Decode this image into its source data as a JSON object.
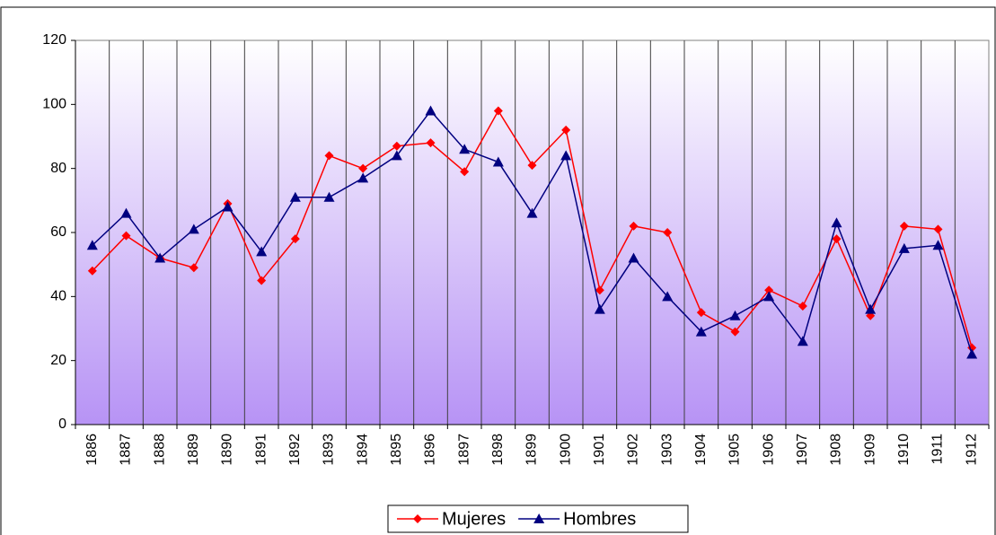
{
  "chart_data": {
    "type": "line",
    "categories": [
      "1886",
      "1887",
      "1888",
      "1889",
      "1890",
      "1891",
      "1892",
      "1893",
      "1894",
      "1895",
      "1896",
      "1897",
      "1898",
      "1899",
      "1900",
      "1901",
      "1902",
      "1903",
      "1904",
      "1905",
      "1906",
      "1907",
      "1908",
      "1909",
      "1910",
      "1911",
      "1912"
    ],
    "series": [
      {
        "name": "Mujeres",
        "color": "#ff0000",
        "marker": "diamond",
        "values": [
          48,
          59,
          52,
          49,
          69,
          45,
          58,
          84,
          80,
          87,
          88,
          79,
          98,
          81,
          92,
          42,
          62,
          60,
          35,
          29,
          42,
          37,
          58,
          34,
          62,
          61,
          24
        ]
      },
      {
        "name": "Hombres",
        "color": "#000080",
        "marker": "triangle",
        "values": [
          56,
          66,
          52,
          61,
          68,
          54,
          71,
          71,
          77,
          84,
          98,
          86,
          82,
          66,
          84,
          36,
          52,
          40,
          29,
          34,
          40,
          26,
          63,
          36,
          55,
          56,
          22
        ]
      }
    ],
    "ylim": [
      0,
      120
    ],
    "yticks": [
      0,
      20,
      40,
      60,
      80,
      100,
      120
    ],
    "legend": "bottom"
  }
}
